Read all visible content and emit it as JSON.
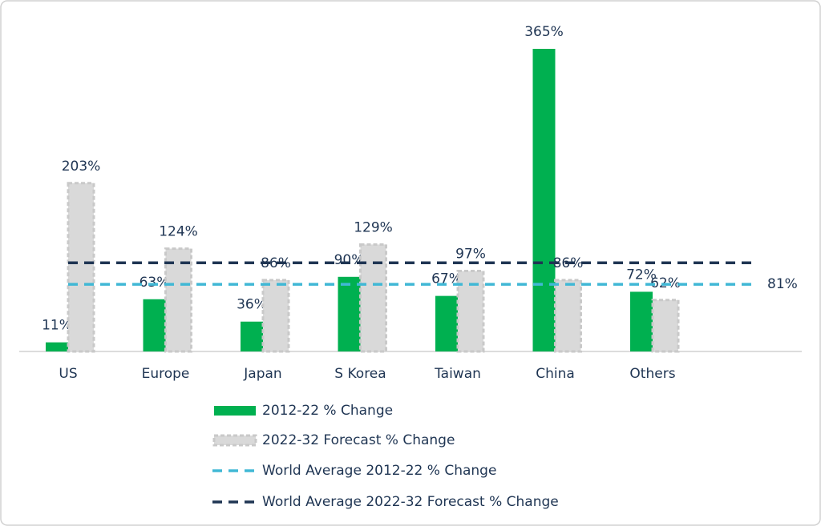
{
  "chart_data": {
    "type": "bar",
    "categories": [
      "US",
      "Europe",
      "Japan",
      "S Korea",
      "Taiwan",
      "China",
      "Others"
    ],
    "series": [
      {
        "name": "2012-22 % Change",
        "color": "#00b050",
        "values": [
          11,
          63,
          36,
          90,
          67,
          365,
          72
        ],
        "value_labels": [
          "11%",
          "63%",
          "36%",
          "90%",
          "67%",
          "365%",
          "72%"
        ]
      },
      {
        "name": "2022-32 Forecast % Change",
        "color": "#d9d9d9",
        "values": [
          203,
          124,
          86,
          129,
          97,
          86,
          62
        ],
        "value_labels": [
          "203%",
          "124%",
          "86%",
          "129%",
          "97%",
          "86%",
          "62%"
        ]
      }
    ],
    "reference_lines": [
      {
        "name": "World Average 2012-22 % Change",
        "color": "#41b8d5",
        "value": 81,
        "value_label": "81%"
      },
      {
        "name": "World Average 2022-32 Forecast % Change",
        "color": "#1f3553",
        "value": 107
      }
    ],
    "ylim": [
      0,
      365
    ]
  }
}
